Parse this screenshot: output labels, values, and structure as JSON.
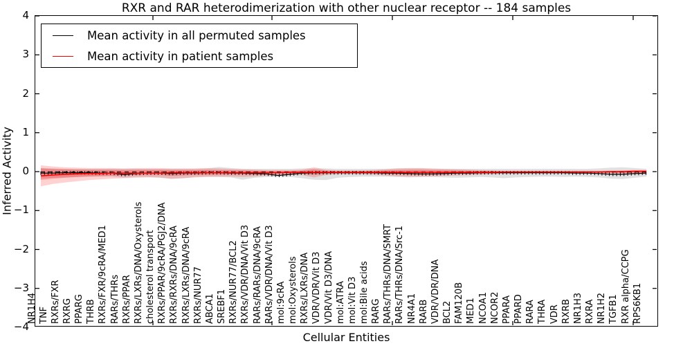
{
  "title": "RXR and RAR heterodimerization with other nuclear receptor -- 184 samples",
  "axes": {
    "ylabel": "Inferred Activity",
    "xlabel": "Cellular Entities",
    "yticks": [
      "4",
      "3",
      "2",
      "1",
      "0",
      "−1",
      "−2",
      "−3",
      "−4"
    ]
  },
  "legend": {
    "items": [
      {
        "label": "Mean activity in all permuted samples",
        "color": "#000000"
      },
      {
        "label": "Mean activity in patient samples",
        "color": "#ff0000"
      }
    ]
  },
  "chart_data": {
    "type": "line",
    "title": "RXR and RAR heterodimerization with other nuclear receptor -- 184 samples",
    "xlabel": "Cellular Entities",
    "ylabel": "Inferred Activity",
    "ylim": [
      -4,
      4
    ],
    "grid": false,
    "legend_position": "upper left",
    "categories": [
      "NR1H4",
      "TNF",
      "RXRs/FXR",
      "RXRG",
      "PPARG",
      "THRB",
      "RXRs/FXR/9cRA/MED1",
      "RARs/THRs",
      "RXRs/PPAR",
      "RXRs/LXRs/DNA/Oxysterols",
      "cholesterol transport",
      "RXRs/PPAR/9cRA/PGJ2/DNA",
      "RXRs/RXRs/DNA/9cRA",
      "RXRs/LXRs/DNA/9cRA",
      "RXRs/NUR77",
      "ABCA1",
      "SREBF1",
      "RXRs/NUR77/BCL2",
      "RXRs/VDR/DNA/Vit D3",
      "RARs/RARs/DNA/9cRA",
      "RARs/VDR/DNA/Vit D3",
      "mol:9cRA",
      "mol:Oxysterols",
      "RXRs/LXRs/DNA",
      "VDR/VDR/Vit D3",
      "VDR/Vit D3/DNA",
      "mol:ATRA",
      "mol:Vit D3",
      "mol:Bile acids",
      "RARG",
      "RARs/THRs/DNA/SMRT",
      "RARs/THRs/DNA/Src-1",
      "NR4A1",
      "RARB",
      "VDR/VDR/DNA",
      "BCL2",
      "FAM120B",
      "MED1",
      "NCOA1",
      "NCOR2",
      "PPARA",
      "PPARD",
      "RARA",
      "THRA",
      "VDR",
      "RXRB",
      "NR1H3",
      "RXRA",
      "NR1H2",
      "TGFB1",
      "RXR alpha/CCPG",
      "RPS6KB1"
    ],
    "series": [
      {
        "name": "Mean activity in all permuted samples",
        "color": "#000000",
        "marker": "tick",
        "values": [
          -0.03,
          -0.03,
          -0.02,
          -0.02,
          -0.02,
          -0.03,
          -0.03,
          -0.07,
          -0.04,
          -0.03,
          -0.03,
          -0.04,
          -0.03,
          -0.03,
          -0.02,
          -0.02,
          -0.03,
          -0.03,
          -0.04,
          -0.05,
          -0.09,
          -0.06,
          -0.03,
          -0.02,
          -0.02,
          -0.02,
          -0.02,
          -0.02,
          -0.02,
          -0.03,
          -0.03,
          -0.04,
          -0.05,
          -0.05,
          -0.04,
          -0.03,
          -0.03,
          -0.02,
          -0.02,
          -0.02,
          -0.02,
          -0.02,
          -0.02,
          -0.02,
          -0.02,
          -0.03,
          -0.03,
          -0.04,
          -0.06,
          -0.06,
          -0.04,
          -0.03
        ]
      },
      {
        "name": "Mean activity in patient samples",
        "color": "#ff0000",
        "marker": "none",
        "values": [
          -0.1,
          -0.08,
          -0.06,
          -0.05,
          -0.04,
          -0.04,
          -0.03,
          -0.03,
          -0.03,
          -0.03,
          -0.03,
          -0.02,
          -0.02,
          -0.02,
          -0.02,
          -0.02,
          -0.02,
          -0.02,
          -0.02,
          -0.02,
          -0.02,
          -0.01,
          -0.01,
          -0.01,
          -0.01,
          -0.01,
          -0.01,
          -0.01,
          -0.01,
          -0.01,
          -0.01,
          -0.01,
          -0.01,
          -0.01,
          -0.01,
          -0.01,
          -0.01,
          -0.01,
          -0.01,
          0,
          0,
          0,
          0,
          0,
          0,
          0,
          0,
          0,
          0.01,
          0.01,
          0.02,
          0.02
        ]
      }
    ],
    "bands": {
      "gray": {
        "color": "#787878",
        "alpha": 0.22,
        "hi": [
          0.1,
          0.09,
          0.08,
          0.08,
          0.08,
          0.08,
          0.08,
          0.08,
          0.08,
          0.08,
          0.08,
          0.08,
          0.08,
          0.08,
          0.09,
          0.13,
          0.1,
          0.08,
          0.08,
          0.08,
          0.08,
          0.08,
          0.09,
          0.09,
          0.09,
          0.08,
          0.08,
          0.08,
          0.08,
          0.08,
          0.09,
          0.09,
          0.09,
          0.08,
          0.08,
          0.08,
          0.08,
          0.08,
          0.08,
          0.08,
          0.08,
          0.08,
          0.08,
          0.08,
          0.08,
          0.08,
          0.08,
          0.09,
          0.11,
          0.12,
          0.1,
          0.08
        ],
        "lo": [
          -0.16,
          -0.15,
          -0.14,
          -0.13,
          -0.12,
          -0.12,
          -0.12,
          -0.15,
          -0.13,
          -0.13,
          -0.15,
          -0.17,
          -0.16,
          -0.13,
          -0.12,
          -0.13,
          -0.14,
          -0.2,
          -0.15,
          -0.13,
          -0.13,
          -0.13,
          -0.16,
          -0.2,
          -0.21,
          -0.15,
          -0.13,
          -0.12,
          -0.12,
          -0.12,
          -0.13,
          -0.14,
          -0.13,
          -0.13,
          -0.14,
          -0.15,
          -0.14,
          -0.13,
          -0.14,
          -0.16,
          -0.14,
          -0.13,
          -0.12,
          -0.12,
          -0.13,
          -0.12,
          -0.13,
          -0.14,
          -0.17,
          -0.18,
          -0.15,
          -0.12
        ]
      },
      "red": {
        "color": "#ff0000",
        "alpha": 0.18,
        "inner_scale": 0.55,
        "hi": [
          0.17,
          0.14,
          0.12,
          0.11,
          0.1,
          0.1,
          0.1,
          0.09,
          0.1,
          0.1,
          0.1,
          0.09,
          0.09,
          0.09,
          0.1,
          0.09,
          0.08,
          0.07,
          0.06,
          0.05,
          0.05,
          0.05,
          0.06,
          0.12,
          0.06,
          0.04,
          0.04,
          0.04,
          0.05,
          0.07,
          0.09,
          0.1,
          0.1,
          0.09,
          0.08,
          0.07,
          0.06,
          0.05,
          0.04,
          0.03,
          0.03,
          0.03,
          0.03,
          0.03,
          0.03,
          0.03,
          0.03,
          0.03,
          0.03,
          0.04,
          0.05,
          0.05
        ],
        "lo": [
          -0.37,
          -0.31,
          -0.27,
          -0.24,
          -0.21,
          -0.19,
          -0.17,
          -0.16,
          -0.15,
          -0.14,
          -0.14,
          -0.18,
          -0.16,
          -0.14,
          -0.13,
          -0.12,
          -0.12,
          -0.13,
          -0.12,
          -0.1,
          -0.09,
          -0.08,
          -0.08,
          -0.14,
          -0.08,
          -0.06,
          -0.06,
          -0.06,
          -0.07,
          -0.09,
          -0.11,
          -0.12,
          -0.12,
          -0.11,
          -0.1,
          -0.09,
          -0.08,
          -0.07,
          -0.06,
          -0.05,
          -0.05,
          -0.04,
          -0.04,
          -0.04,
          -0.04,
          -0.04,
          -0.04,
          -0.04,
          -0.04,
          -0.05,
          -0.06,
          -0.06
        ]
      }
    },
    "zero_line": {
      "value": 0,
      "style": "dashed",
      "color": "#000000"
    }
  }
}
